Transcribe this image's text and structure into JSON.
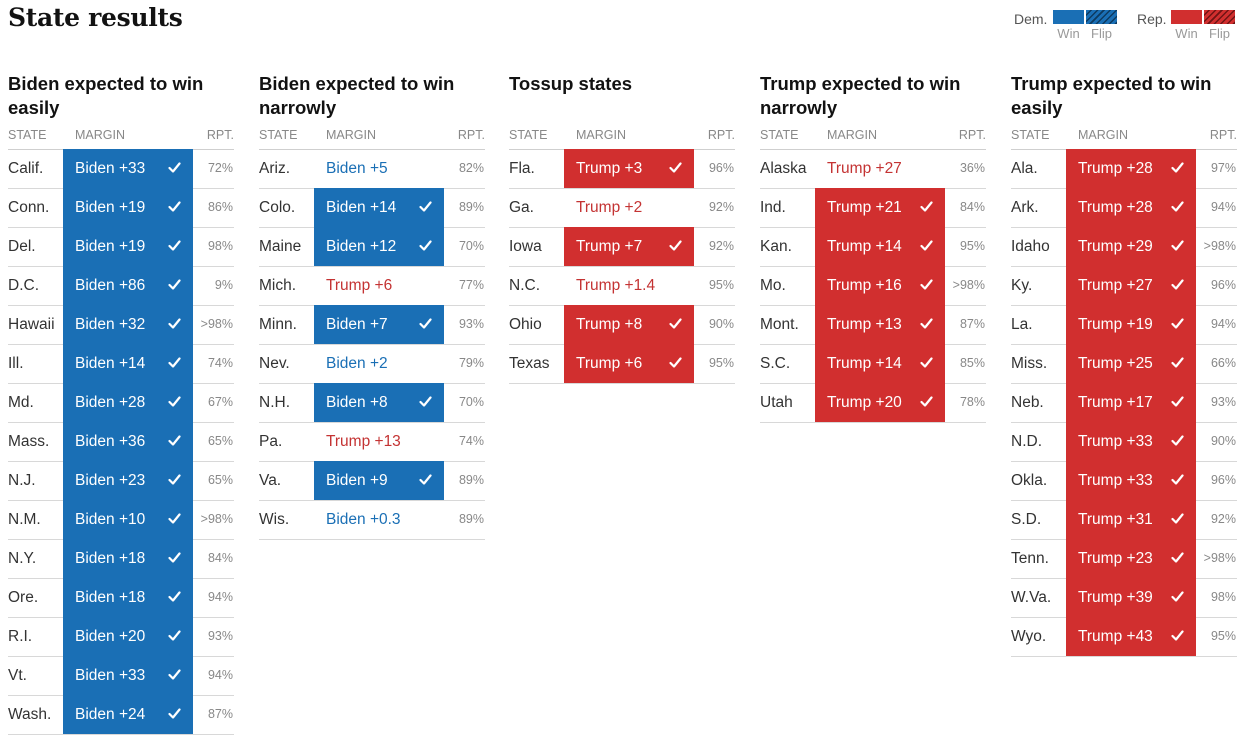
{
  "page_title": "State results",
  "legend": {
    "dem_label": "Dem.",
    "rep_label": "Rep.",
    "win_label": "Win",
    "flip_label": "Flip",
    "dem_color": "#1a6fb5",
    "rep_color": "#d12f2f"
  },
  "table_headers": {
    "state": "STATE",
    "margin": "MARGIN",
    "rpt": "RPT."
  },
  "groups": [
    {
      "title": "Biden expected to win easily",
      "rows": [
        {
          "state": "Calif.",
          "margin": "Biden +33",
          "party": "dem",
          "called": true,
          "rpt": "72%"
        },
        {
          "state": "Conn.",
          "margin": "Biden +19",
          "party": "dem",
          "called": true,
          "rpt": "86%"
        },
        {
          "state": "Del.",
          "margin": "Biden +19",
          "party": "dem",
          "called": true,
          "rpt": "98%"
        },
        {
          "state": "D.C.",
          "margin": "Biden +86",
          "party": "dem",
          "called": true,
          "rpt": "9%"
        },
        {
          "state": "Hawaii",
          "margin": "Biden +32",
          "party": "dem",
          "called": true,
          "rpt": ">98%"
        },
        {
          "state": "Ill.",
          "margin": "Biden +14",
          "party": "dem",
          "called": true,
          "rpt": "74%"
        },
        {
          "state": "Md.",
          "margin": "Biden +28",
          "party": "dem",
          "called": true,
          "rpt": "67%"
        },
        {
          "state": "Mass.",
          "margin": "Biden +36",
          "party": "dem",
          "called": true,
          "rpt": "65%"
        },
        {
          "state": "N.J.",
          "margin": "Biden +23",
          "party": "dem",
          "called": true,
          "rpt": "65%"
        },
        {
          "state": "N.M.",
          "margin": "Biden +10",
          "party": "dem",
          "called": true,
          "rpt": ">98%"
        },
        {
          "state": "N.Y.",
          "margin": "Biden +18",
          "party": "dem",
          "called": true,
          "rpt": "84%"
        },
        {
          "state": "Ore.",
          "margin": "Biden +18",
          "party": "dem",
          "called": true,
          "rpt": "94%"
        },
        {
          "state": "R.I.",
          "margin": "Biden +20",
          "party": "dem",
          "called": true,
          "rpt": "93%"
        },
        {
          "state": "Vt.",
          "margin": "Biden +33",
          "party": "dem",
          "called": true,
          "rpt": "94%"
        },
        {
          "state": "Wash.",
          "margin": "Biden +24",
          "party": "dem",
          "called": true,
          "rpt": "87%"
        }
      ]
    },
    {
      "title": "Biden expected to win narrowly",
      "rows": [
        {
          "state": "Ariz.",
          "margin": "Biden +5",
          "party": "dem",
          "called": false,
          "rpt": "82%"
        },
        {
          "state": "Colo.",
          "margin": "Biden +14",
          "party": "dem",
          "called": true,
          "rpt": "89%"
        },
        {
          "state": "Maine",
          "margin": "Biden +12",
          "party": "dem",
          "called": true,
          "rpt": "70%"
        },
        {
          "state": "Mich.",
          "margin": "Trump +6",
          "party": "rep",
          "called": false,
          "rpt": "77%"
        },
        {
          "state": "Minn.",
          "margin": "Biden +7",
          "party": "dem",
          "called": true,
          "rpt": "93%"
        },
        {
          "state": "Nev.",
          "margin": "Biden +2",
          "party": "dem",
          "called": false,
          "rpt": "79%"
        },
        {
          "state": "N.H.",
          "margin": "Biden +8",
          "party": "dem",
          "called": true,
          "rpt": "70%"
        },
        {
          "state": "Pa.",
          "margin": "Trump +13",
          "party": "rep",
          "called": false,
          "rpt": "74%"
        },
        {
          "state": "Va.",
          "margin": "Biden +9",
          "party": "dem",
          "called": true,
          "rpt": "89%"
        },
        {
          "state": "Wis.",
          "margin": "Biden +0.3",
          "party": "dem",
          "called": false,
          "rpt": "89%"
        }
      ]
    },
    {
      "title": "Tossup states",
      "rows": [
        {
          "state": "Fla.",
          "margin": "Trump +3",
          "party": "rep",
          "called": true,
          "rpt": "96%"
        },
        {
          "state": "Ga.",
          "margin": "Trump +2",
          "party": "rep",
          "called": false,
          "rpt": "92%"
        },
        {
          "state": "Iowa",
          "margin": "Trump +7",
          "party": "rep",
          "called": true,
          "rpt": "92%"
        },
        {
          "state": "N.C.",
          "margin": "Trump +1.4",
          "party": "rep",
          "called": false,
          "rpt": "95%"
        },
        {
          "state": "Ohio",
          "margin": "Trump +8",
          "party": "rep",
          "called": true,
          "rpt": "90%"
        },
        {
          "state": "Texas",
          "margin": "Trump +6",
          "party": "rep",
          "called": true,
          "rpt": "95%"
        }
      ]
    },
    {
      "title": "Trump expected to win narrowly",
      "rows": [
        {
          "state": "Alaska",
          "margin": "Trump +27",
          "party": "rep",
          "called": false,
          "rpt": "36%"
        },
        {
          "state": "Ind.",
          "margin": "Trump +21",
          "party": "rep",
          "called": true,
          "rpt": "84%"
        },
        {
          "state": "Kan.",
          "margin": "Trump +14",
          "party": "rep",
          "called": true,
          "rpt": "95%"
        },
        {
          "state": "Mo.",
          "margin": "Trump +16",
          "party": "rep",
          "called": true,
          "rpt": ">98%"
        },
        {
          "state": "Mont.",
          "margin": "Trump +13",
          "party": "rep",
          "called": true,
          "rpt": "87%"
        },
        {
          "state": "S.C.",
          "margin": "Trump +14",
          "party": "rep",
          "called": true,
          "rpt": "85%"
        },
        {
          "state": "Utah",
          "margin": "Trump +20",
          "party": "rep",
          "called": true,
          "rpt": "78%"
        }
      ]
    },
    {
      "title": "Trump expected to win easily",
      "rows": [
        {
          "state": "Ala.",
          "margin": "Trump +28",
          "party": "rep",
          "called": true,
          "rpt": "97%"
        },
        {
          "state": "Ark.",
          "margin": "Trump +28",
          "party": "rep",
          "called": true,
          "rpt": "94%"
        },
        {
          "state": "Idaho",
          "margin": "Trump +29",
          "party": "rep",
          "called": true,
          "rpt": ">98%"
        },
        {
          "state": "Ky.",
          "margin": "Trump +27",
          "party": "rep",
          "called": true,
          "rpt": "96%"
        },
        {
          "state": "La.",
          "margin": "Trump +19",
          "party": "rep",
          "called": true,
          "rpt": "94%"
        },
        {
          "state": "Miss.",
          "margin": "Trump +25",
          "party": "rep",
          "called": true,
          "rpt": "66%"
        },
        {
          "state": "Neb.",
          "margin": "Trump +17",
          "party": "rep",
          "called": true,
          "rpt": "93%"
        },
        {
          "state": "N.D.",
          "margin": "Trump +33",
          "party": "rep",
          "called": true,
          "rpt": "90%"
        },
        {
          "state": "Okla.",
          "margin": "Trump +33",
          "party": "rep",
          "called": true,
          "rpt": "96%"
        },
        {
          "state": "S.D.",
          "margin": "Trump +31",
          "party": "rep",
          "called": true,
          "rpt": "92%"
        },
        {
          "state": "Tenn.",
          "margin": "Trump +23",
          "party": "rep",
          "called": true,
          "rpt": ">98%"
        },
        {
          "state": "W.Va.",
          "margin": "Trump +39",
          "party": "rep",
          "called": true,
          "rpt": "98%"
        },
        {
          "state": "Wyo.",
          "margin": "Trump +43",
          "party": "rep",
          "called": true,
          "rpt": "95%"
        }
      ]
    }
  ]
}
